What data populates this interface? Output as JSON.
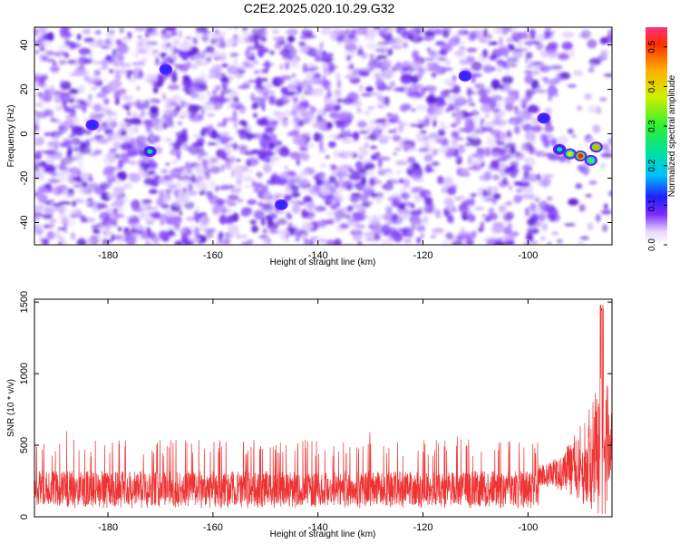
{
  "title": "C2E2.2025.020.10.29.G32",
  "chart_data": [
    {
      "type": "heatmap",
      "xlabel": "Height of straight line (km)",
      "ylabel": "Frequency (Hz)",
      "xlim": [
        -194,
        -84
      ],
      "ylim": [
        -50,
        48
      ],
      "xticks": [
        -180,
        -160,
        -140,
        -120,
        -100
      ],
      "yticks": [
        -40,
        -20,
        0,
        20,
        40
      ],
      "colorbar": {
        "label": "Normalized spectral amplitude",
        "range": [
          0,
          0.55
        ],
        "ticks": [
          0.0,
          0.1,
          0.2,
          0.3,
          0.4,
          0.5
        ],
        "tick_labels": [
          "0.0",
          "0.1",
          "0.2",
          "0.3",
          "0.4",
          "0.5"
        ]
      },
      "background_level": 0.05,
      "hotspots": [
        {
          "x": -90,
          "y": -10,
          "value": 0.5
        },
        {
          "x": -87,
          "y": -6,
          "value": 0.45
        },
        {
          "x": -92,
          "y": -9,
          "value": 0.35
        },
        {
          "x": -88,
          "y": -12,
          "value": 0.3
        },
        {
          "x": -94,
          "y": -7,
          "value": 0.2
        },
        {
          "x": -172,
          "y": -8,
          "value": 0.2
        },
        {
          "x": -183,
          "y": 4,
          "value": 0.12
        },
        {
          "x": -169,
          "y": 29,
          "value": 0.12
        },
        {
          "x": -147,
          "y": -32,
          "value": 0.12
        },
        {
          "x": -112,
          "y": 26,
          "value": 0.12
        },
        {
          "x": -97,
          "y": 7,
          "value": 0.12
        }
      ],
      "note_grid": false
    },
    {
      "type": "line",
      "xlabel": "Height of straight line (km)",
      "ylabel": "SNR (10 * v/v)",
      "xlim": [
        -194,
        -84
      ],
      "ylim": [
        0,
        1520
      ],
      "xticks": [
        -180,
        -160,
        -140,
        -120,
        -100
      ],
      "yticks": [
        0,
        500,
        1000,
        1500
      ],
      "series": [
        {
          "color": "#ee3333",
          "baseline": 200,
          "noise_band": [
            60,
            440
          ],
          "occasional_peaks_to": 620,
          "rise_start_x": -98,
          "peak_x": -86,
          "peak_value": 1500
        }
      ]
    }
  ],
  "colors": {
    "frame": "#000000",
    "line": "#ee3333"
  }
}
